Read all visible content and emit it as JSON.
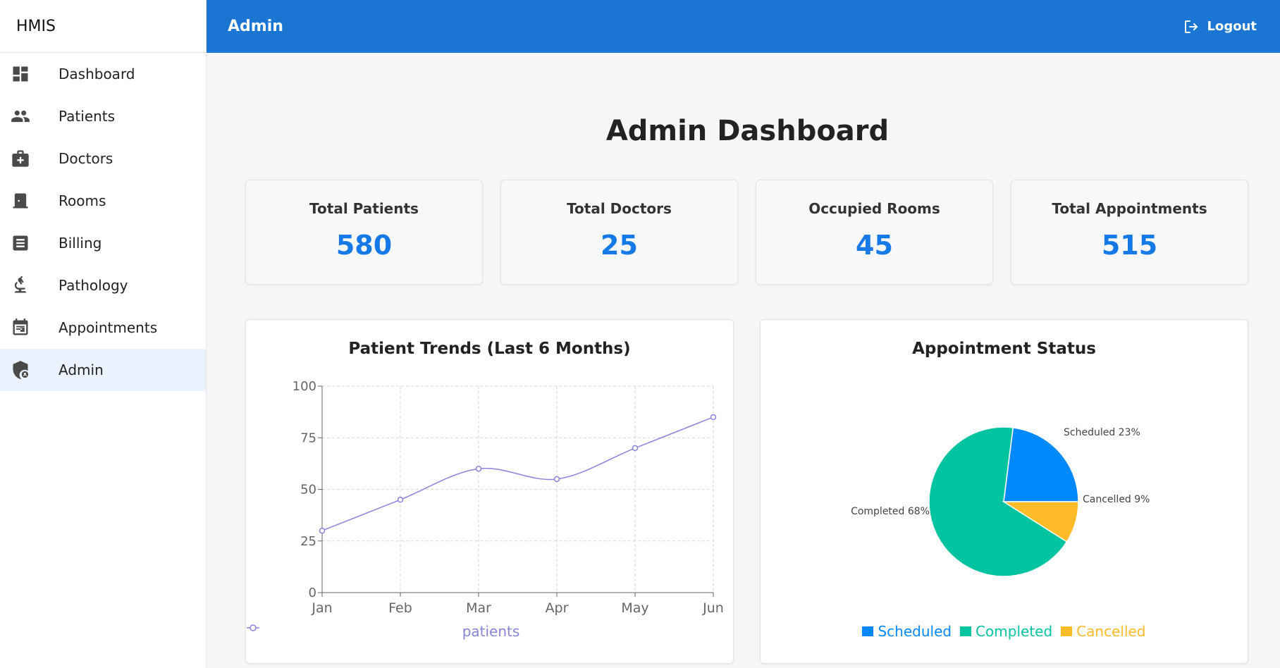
{
  "app": {
    "brand": "HMIS",
    "section_title": "Admin",
    "logout_label": "Logout"
  },
  "sidebar": {
    "items": [
      {
        "label": "Dashboard",
        "icon": "dashboard-icon",
        "active": false
      },
      {
        "label": "Patients",
        "icon": "people-icon",
        "active": false
      },
      {
        "label": "Doctors",
        "icon": "medical-bag-icon",
        "active": false
      },
      {
        "label": "Rooms",
        "icon": "door-icon",
        "active": false
      },
      {
        "label": "Billing",
        "icon": "receipt-icon",
        "active": false
      },
      {
        "label": "Pathology",
        "icon": "microscope-icon",
        "active": false
      },
      {
        "label": "Appointments",
        "icon": "calendar-icon",
        "active": false
      },
      {
        "label": "Admin",
        "icon": "admin-shield-icon",
        "active": true
      }
    ]
  },
  "page": {
    "title": "Admin Dashboard"
  },
  "stats": [
    {
      "title": "Total Patients",
      "value": "580"
    },
    {
      "title": "Total Doctors",
      "value": "25"
    },
    {
      "title": "Occupied Rooms",
      "value": "45"
    },
    {
      "title": "Total Appointments",
      "value": "515"
    }
  ],
  "colors": {
    "accent": "#1b76d3",
    "stat_value": "#1679e8",
    "line": "#8884d8",
    "scheduled": "#0088fe",
    "completed": "#00c49f",
    "cancelled": "#ffbb28"
  },
  "chart_data": [
    {
      "type": "line",
      "title": "Patient Trends (Last 6 Months)",
      "categories": [
        "Jan",
        "Feb",
        "Mar",
        "Apr",
        "May",
        "Jun"
      ],
      "series": [
        {
          "name": "patients",
          "values": [
            30,
            45,
            60,
            55,
            70,
            85
          ]
        }
      ],
      "ylim": [
        0,
        100
      ],
      "yticks": [
        0,
        25,
        50,
        75,
        100
      ],
      "grid": true,
      "legend_position": "bottom"
    },
    {
      "type": "pie",
      "title": "Appointment Status",
      "labels": [
        "Scheduled",
        "Completed",
        "Cancelled"
      ],
      "values": [
        23,
        68,
        9
      ],
      "slice_labels": [
        "Scheduled 23%",
        "Completed 68%",
        "Cancelled 9%"
      ],
      "legend_position": "bottom"
    }
  ]
}
